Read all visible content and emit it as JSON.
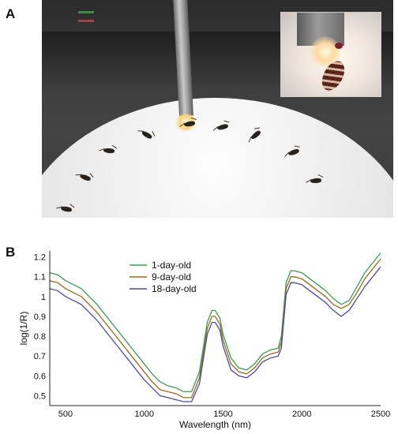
{
  "panel_labels": {
    "a": "A",
    "b": "B"
  },
  "chart_data": {
    "type": "line",
    "title": "",
    "xlabel": "Wavelength (nm)",
    "ylabel": "log(1/R)",
    "xlim": [
      400,
      2500
    ],
    "ylim": [
      0.45,
      1.23
    ],
    "grid": false,
    "legend_position": "top-left",
    "x_ticks": [
      500,
      1000,
      1500,
      2000,
      2500
    ],
    "y_ticks": [
      0.5,
      0.6,
      0.7,
      0.8,
      0.9,
      1.0,
      1.1,
      1.2
    ],
    "x_tick_labels": [
      "500",
      "1000",
      "1500",
      "2000",
      "2500"
    ],
    "y_tick_labels": [
      "0.5",
      "0.6",
      "0.7",
      "0.8",
      "0.9",
      "1",
      "1.1",
      "1.2"
    ],
    "x": [
      400,
      450,
      500,
      550,
      600,
      650,
      700,
      750,
      800,
      850,
      900,
      950,
      1000,
      1050,
      1100,
      1150,
      1200,
      1250,
      1300,
      1350,
      1400,
      1430,
      1450,
      1480,
      1500,
      1550,
      1600,
      1650,
      1700,
      1750,
      1800,
      1850,
      1870,
      1900,
      1930,
      1950,
      2000,
      2050,
      2100,
      2150,
      2200,
      2250,
      2300,
      2350,
      2400,
      2450,
      2500
    ],
    "series": [
      {
        "name": "1-day-old",
        "color": "#3e9a55",
        "values": [
          1.12,
          1.11,
          1.08,
          1.06,
          1.04,
          1.0,
          0.96,
          0.91,
          0.86,
          0.81,
          0.76,
          0.71,
          0.66,
          0.61,
          0.57,
          0.55,
          0.54,
          0.52,
          0.52,
          0.62,
          0.87,
          0.93,
          0.93,
          0.89,
          0.81,
          0.69,
          0.64,
          0.63,
          0.66,
          0.71,
          0.73,
          0.74,
          0.8,
          1.07,
          1.13,
          1.13,
          1.12,
          1.09,
          1.06,
          1.03,
          0.99,
          0.96,
          0.98,
          1.05,
          1.12,
          1.17,
          1.22
        ]
      },
      {
        "name": "9-day-old",
        "color": "#9a6a18",
        "values": [
          1.08,
          1.07,
          1.04,
          1.02,
          1.0,
          0.96,
          0.92,
          0.87,
          0.82,
          0.77,
          0.72,
          0.67,
          0.62,
          0.57,
          0.53,
          0.52,
          0.51,
          0.49,
          0.49,
          0.59,
          0.84,
          0.9,
          0.9,
          0.86,
          0.78,
          0.66,
          0.62,
          0.61,
          0.64,
          0.69,
          0.71,
          0.72,
          0.77,
          1.04,
          1.1,
          1.1,
          1.09,
          1.06,
          1.03,
          1.0,
          0.96,
          0.94,
          0.96,
          1.02,
          1.09,
          1.14,
          1.19
        ]
      },
      {
        "name": "18-day-old",
        "color": "#4a4aa8",
        "values": [
          1.04,
          1.03,
          1.0,
          0.98,
          0.96,
          0.92,
          0.88,
          0.83,
          0.78,
          0.73,
          0.68,
          0.63,
          0.58,
          0.54,
          0.5,
          0.49,
          0.48,
          0.47,
          0.47,
          0.56,
          0.81,
          0.87,
          0.87,
          0.83,
          0.75,
          0.63,
          0.6,
          0.59,
          0.62,
          0.67,
          0.69,
          0.7,
          0.74,
          1.01,
          1.07,
          1.07,
          1.06,
          1.03,
          1.0,
          0.97,
          0.93,
          0.9,
          0.93,
          0.99,
          1.05,
          1.1,
          1.15
        ]
      }
    ]
  }
}
